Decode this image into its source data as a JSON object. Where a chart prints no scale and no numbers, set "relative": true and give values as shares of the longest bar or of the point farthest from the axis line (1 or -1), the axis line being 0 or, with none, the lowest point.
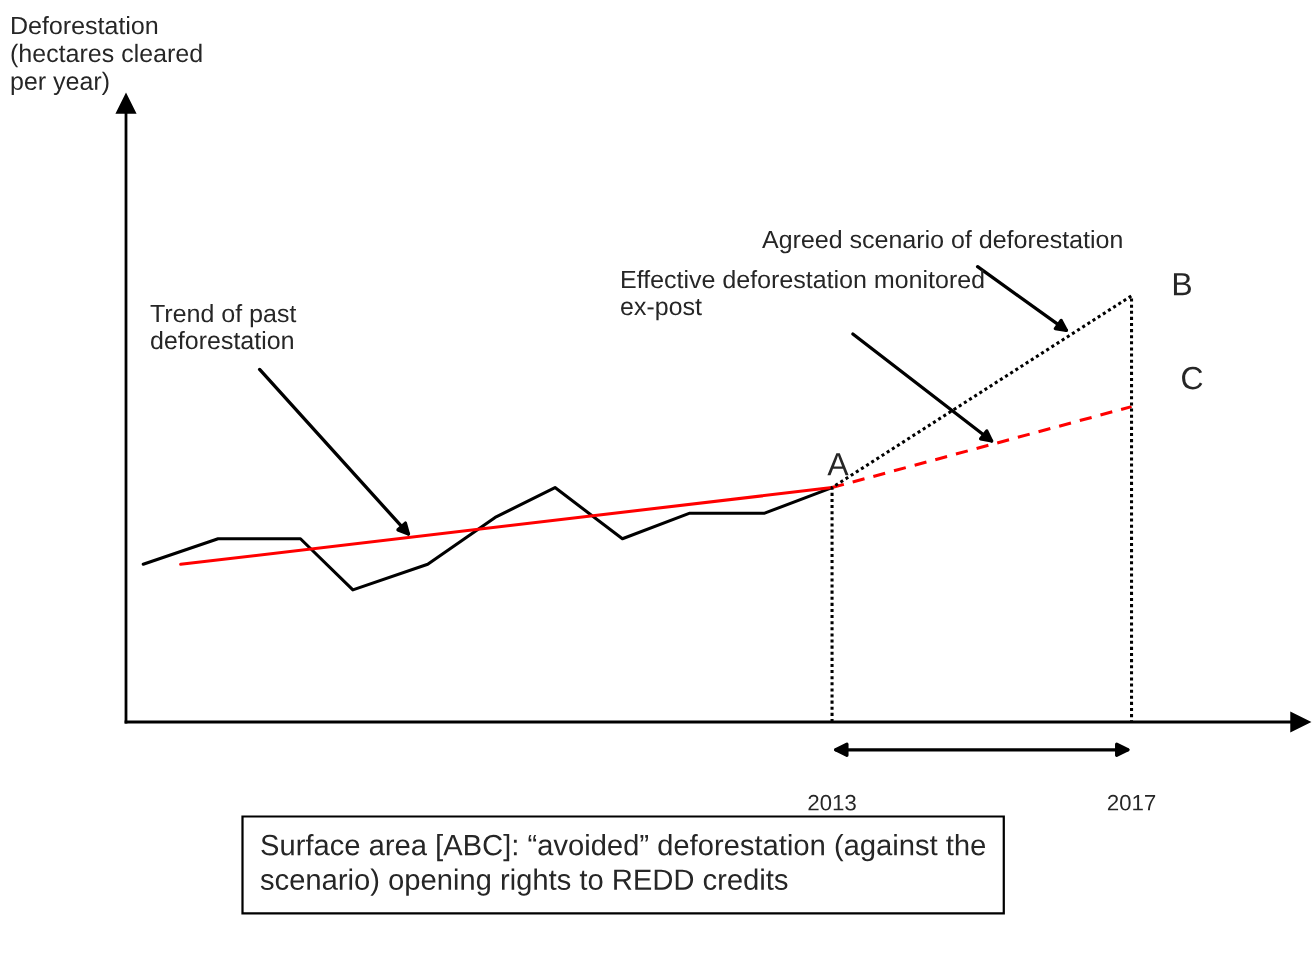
{
  "chart_data": {
    "type": "line",
    "relative": true,
    "xlim": [
      2003.57,
      2019.25
    ],
    "xticks": [
      2013,
      2017
    ],
    "tick_labels": "x",
    "grid": false,
    "series": [
      {
        "color": "#000000",
        "line_style": "solid",
        "x": [
          2003.8,
          2004.8,
          2005.9,
          2006.6,
          2007.6,
          2008.5,
          2009.3,
          2010.2,
          2011.1,
          2012.1,
          2013
        ],
        "values": [
          0.37,
          0.43,
          0.43,
          0.31,
          0.37,
          0.48,
          0.55,
          0.43,
          0.49,
          0.49,
          0.55
        ]
      },
      {
        "color": "#ff0000",
        "line_style": "solid",
        "x": [
          2004.3,
          2013
        ],
        "values": [
          0.37,
          0.55
        ]
      },
      {
        "color": "#ff0000",
        "line_style": "dashed",
        "x": [
          2013,
          2017
        ],
        "values": [
          0.55,
          0.74
        ]
      },
      {
        "color": "#000000",
        "line_style": "dotted",
        "x": [
          2013,
          2013,
          2017,
          2017
        ],
        "values": [
          0,
          0.55,
          1,
          0
        ]
      }
    ],
    "annotations": [
      {
        "text": "Trend of past\ndeforestation",
        "x": 2007.4,
        "y": 0.43
      },
      {
        "text": "Agreed scenario of deforestation",
        "x": 2016.2,
        "y": 0.91
      },
      {
        "text": "Effective deforestation monitored\nex-post",
        "x": 2015.2,
        "y": 0.65
      },
      {
        "text": "A",
        "x": 2013,
        "y": 0.55
      },
      {
        "text": "B",
        "x": 2017,
        "y": 1
      },
      {
        "text": "C",
        "x": 2017,
        "y": 0.74
      },
      "Deforestation\n(hectares cleared\nper year)",
      "Surface area [ABC]: “avoided” deforestation (against the\nscenario) opening rights to REDD credits"
    ]
  }
}
